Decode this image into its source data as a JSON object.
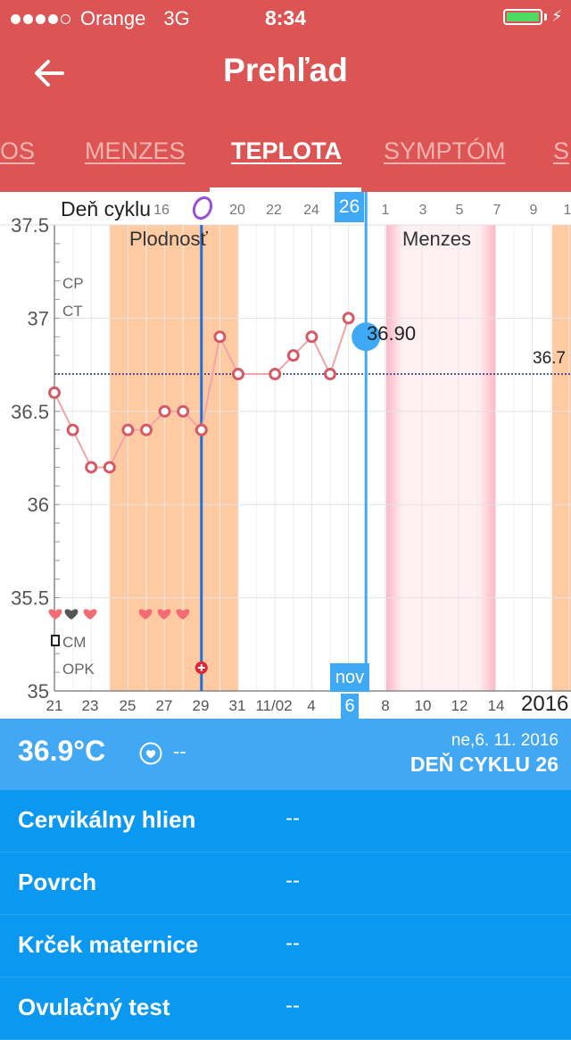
{
  "status_bar": {
    "carrier": "Orange",
    "network": "3G",
    "time": "8:34"
  },
  "header": {
    "title": "Prehľad"
  },
  "tabs": [
    {
      "label": "OS"
    },
    {
      "label": "MENZES"
    },
    {
      "label": "TEPLOTA",
      "active": true
    },
    {
      "label": "SYMPTÓM"
    },
    {
      "label": "S"
    }
  ],
  "chart": {
    "cycle_label": "Deň cyklu",
    "selected_cycle_day": "26",
    "month_label": "nov",
    "selected_date_day": "6",
    "year": "2016",
    "fertile_label": "Plodnosť",
    "period_label": "Menzes",
    "side_labels": [
      "CP",
      "CT",
      "CM",
      "OPK"
    ],
    "cursor_value": "36.90",
    "coverline_value": "36.7",
    "colors": {
      "fertile": "#ffcaa1",
      "period": "#ffc7d2",
      "cursor": "#3fa9f5",
      "ovulation": "#1e6fd9",
      "temp_point": "#d45a66",
      "temp_line": "#f2a3a9",
      "coverline": "#1a2a8a"
    }
  },
  "chart_data": {
    "type": "line",
    "y_ticks": [
      "37.5",
      "37",
      "36.5",
      "36",
      "35.5",
      "35"
    ],
    "ylim": [
      35,
      37.5
    ],
    "cycle_day_ticks": [
      "16",
      "20",
      "22",
      "24",
      "26",
      "1",
      "3",
      "5",
      "7",
      "9",
      "1"
    ],
    "date_ticks": [
      "21",
      "23",
      "25",
      "27",
      "29",
      "31",
      "11/02",
      "4",
      "6",
      "8",
      "10",
      "12",
      "14"
    ],
    "series": [
      {
        "dates": [
          "10/21",
          "10/22",
          "10/23",
          "10/24",
          "10/25",
          "10/26",
          "10/27",
          "10/28",
          "10/29",
          "10/30",
          "10/31",
          "11/01",
          "11/02",
          "11/03",
          "11/04",
          "11/05"
        ],
        "values": [
          36.6,
          36.4,
          36.2,
          36.2,
          36.4,
          36.4,
          36.5,
          36.5,
          36.4,
          36.9,
          36.7,
          36.7,
          36.8,
          36.9,
          36.7,
          37.0
        ]
      }
    ],
    "selected": {
      "date": "11/06",
      "value": 36.9
    },
    "coverline": 36.7
  },
  "summary": {
    "temperature": "36.9°C",
    "secondary": "--",
    "date": "ne,6. 11. 2016",
    "cycle_day": "DEŇ CYKLU 26"
  },
  "details": [
    {
      "label": "Cervikálny hlien",
      "value": "--"
    },
    {
      "label": "Povrch",
      "value": "--"
    },
    {
      "label": "Krček maternice",
      "value": "--"
    },
    {
      "label": "Ovulačný test",
      "value": "--"
    }
  ]
}
